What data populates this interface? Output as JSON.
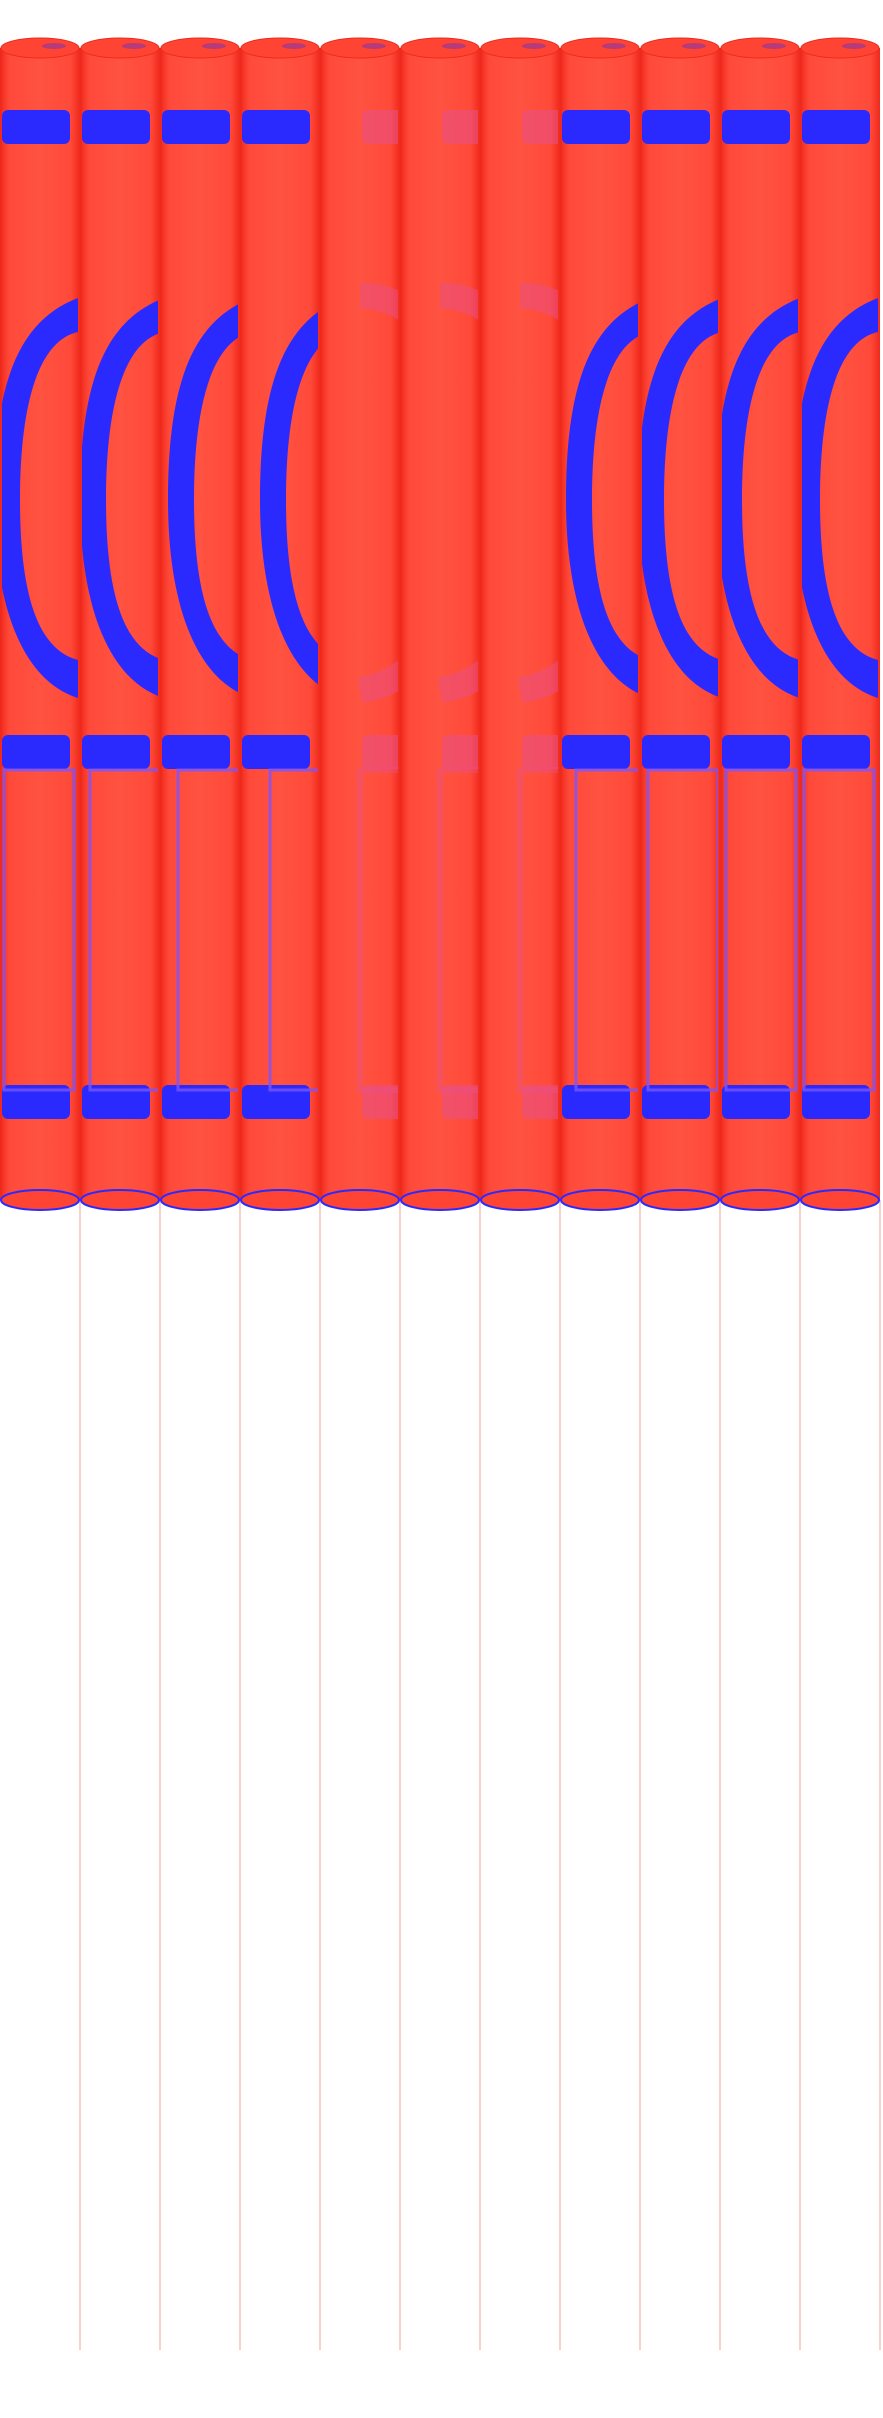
{
  "scene": {
    "cylinder_count": 11,
    "colors": {
      "background": "#ffffff",
      "cylinder_red": "#ff4433",
      "cylinder_red_light": "#ff5a48",
      "cylinder_red_dark": "#ef2a1c",
      "band_blue": "#2a2aff",
      "pink_overlay": "#e8508a",
      "divider_line": "#f2b4a8"
    }
  }
}
